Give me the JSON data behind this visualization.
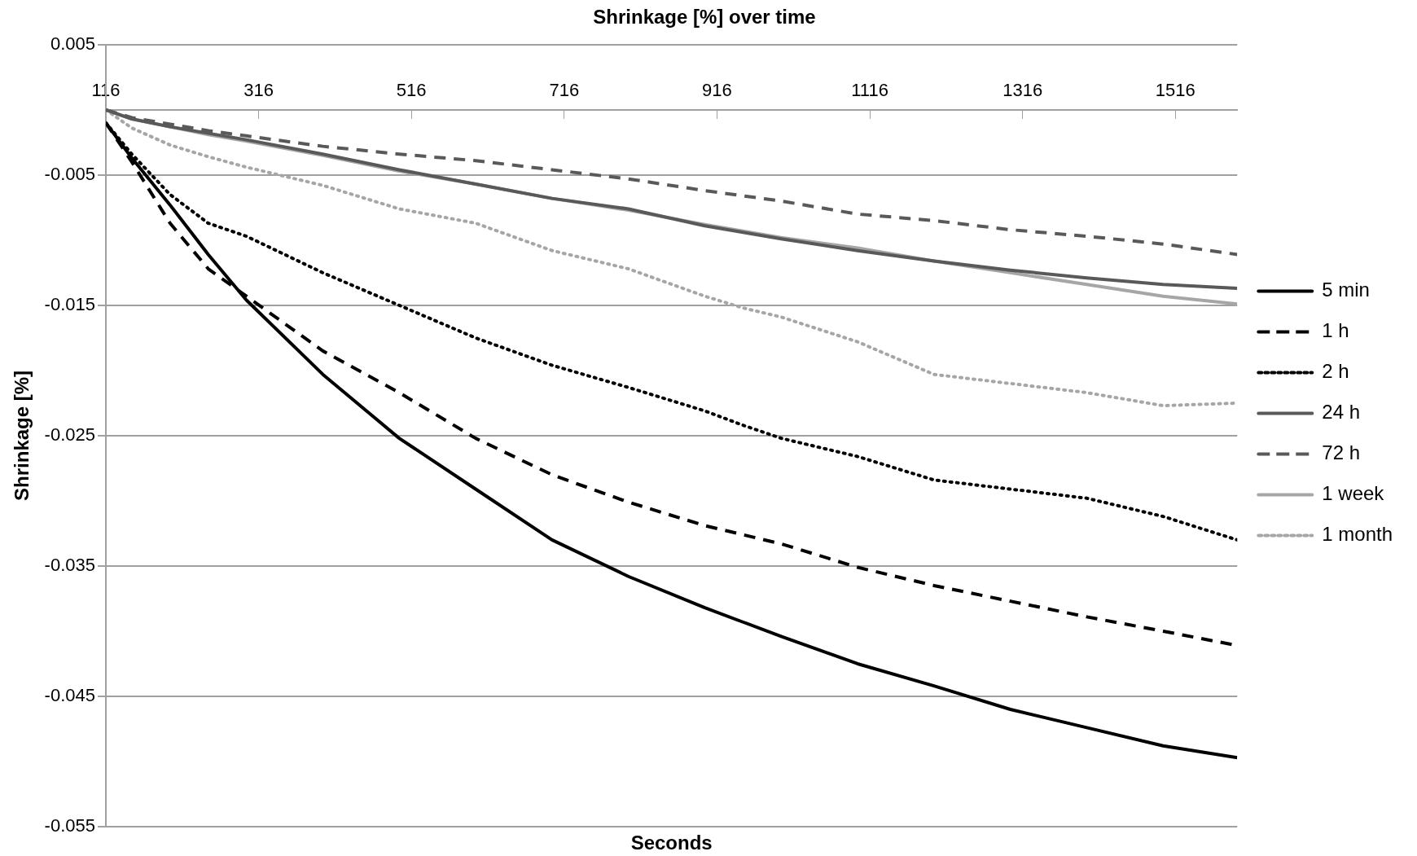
{
  "chart_data": {
    "type": "line",
    "title": "Shrinkage [%] over time",
    "xlabel": "Seconds",
    "ylabel": "Shrinkage [%]",
    "x": [
      116,
      150,
      200,
      250,
      300,
      400,
      500,
      600,
      700,
      800,
      900,
      950,
      1000,
      1100,
      1200,
      1300,
      1400,
      1500,
      1597
    ],
    "xlim": [
      116,
      1597
    ],
    "xticks": [
      116,
      316,
      516,
      716,
      916,
      1116,
      1316,
      1516
    ],
    "ylim": [
      -0.055,
      0.005
    ],
    "yticks": [
      0.005,
      -0.005,
      -0.015,
      -0.025,
      -0.035,
      -0.045,
      -0.055
    ],
    "grid": "y",
    "legend": "right",
    "marker": "none",
    "series": [
      {
        "name": "5 min",
        "color": "#000000",
        "line_style": "solid",
        "values": [
          -0.001,
          -0.0037,
          -0.0073,
          -0.0111,
          -0.0146,
          -0.0203,
          -0.0252,
          -0.0291,
          -0.033,
          -0.0358,
          -0.0382,
          -0.0393,
          -0.0404,
          -0.0425,
          -0.0442,
          -0.046,
          -0.0474,
          -0.0488,
          -0.0497
        ]
      },
      {
        "name": "1 h",
        "color": "#000000",
        "line_style": "dashed",
        "values": [
          -0.001,
          -0.004,
          -0.0087,
          -0.0122,
          -0.0143,
          -0.0185,
          -0.0217,
          -0.0252,
          -0.028,
          -0.0301,
          -0.0319,
          -0.0326,
          -0.0333,
          -0.0351,
          -0.0365,
          -0.0377,
          -0.0389,
          -0.04,
          -0.0411
        ]
      },
      {
        "name": "2 h",
        "color": "#000000",
        "line_style": "dotted",
        "values": [
          -0.001,
          -0.0034,
          -0.0065,
          -0.0087,
          -0.0097,
          -0.0125,
          -0.015,
          -0.0175,
          -0.0196,
          -0.0213,
          -0.0231,
          -0.0242,
          -0.0252,
          -0.0266,
          -0.0284,
          -0.0291,
          -0.0298,
          -0.0312,
          -0.033
        ]
      },
      {
        "name": "24 h",
        "color": "#595959",
        "line_style": "solid",
        "values": [
          0,
          -0.0007,
          -0.0013,
          -0.0018,
          -0.0023,
          -0.0034,
          -0.0046,
          -0.0057,
          -0.0068,
          -0.0076,
          -0.0089,
          -0.0094,
          -0.0099,
          -0.0108,
          -0.0116,
          -0.0123,
          -0.0129,
          -0.0134,
          -0.0137
        ]
      },
      {
        "name": "72 h",
        "color": "#595959",
        "line_style": "dashed",
        "values": [
          0,
          -0.0006,
          -0.0011,
          -0.0016,
          -0.002,
          -0.0028,
          -0.0034,
          -0.0039,
          -0.0046,
          -0.0053,
          -0.0062,
          -0.0066,
          -0.007,
          -0.008,
          -0.0085,
          -0.0092,
          -0.0097,
          -0.0103,
          -0.0111
        ]
      },
      {
        "name": "1 week",
        "color": "#a6a6a6",
        "line_style": "solid",
        "values": [
          0,
          -0.0007,
          -0.0013,
          -0.0019,
          -0.0024,
          -0.0035,
          -0.0047,
          -0.0057,
          -0.0068,
          -0.0077,
          -0.0088,
          -0.0093,
          -0.0098,
          -0.0106,
          -0.0116,
          -0.0125,
          -0.0134,
          -0.0143,
          -0.0149
        ]
      },
      {
        "name": "1 month",
        "color": "#a6a6a6",
        "line_style": "dotted",
        "values": [
          0,
          -0.0014,
          -0.0027,
          -0.0036,
          -0.0044,
          -0.0058,
          -0.0076,
          -0.0087,
          -0.0108,
          -0.0122,
          -0.0143,
          -0.0152,
          -0.0159,
          -0.0178,
          -0.0203,
          -0.021,
          -0.0217,
          -0.0227,
          -0.0225
        ]
      }
    ]
  }
}
